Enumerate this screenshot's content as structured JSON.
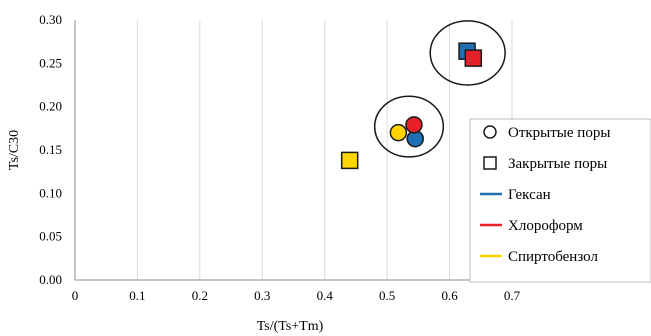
{
  "chart_data": {
    "type": "scatter",
    "title": "",
    "xlabel": "Ts/(Ts+Tm)",
    "ylabel": "Ts/C30",
    "xlim": [
      0,
      0.7
    ],
    "ylim": [
      0,
      0.3
    ],
    "x_ticks": [
      0,
      0.1,
      0.2,
      0.3,
      0.4,
      0.5,
      0.6,
      0.7
    ],
    "x_tick_labels": [
      "0",
      "0.1",
      "0.2",
      "0.3",
      "0.4",
      "0.5",
      "0.6",
      "0.7"
    ],
    "y_ticks": [
      0,
      0.05,
      0.1,
      0.15,
      0.2,
      0.25,
      0.3
    ],
    "y_tick_labels": [
      "0.00",
      "0.05",
      "0.10",
      "0.15",
      "0.20",
      "0.25",
      "0.30"
    ],
    "grid": "vertical",
    "legend_position": "right",
    "colors": {
      "hexane": "#1f6fb4",
      "chloroform": "#e8202a",
      "spirit_benzene": "#ffd400",
      "outline": "#1a1a1a",
      "grid": "#d9d9d9"
    },
    "series": [
      {
        "name": "Гексан",
        "color": "#1f6fb4",
        "points": [
          {
            "x": 0.545,
            "y": 0.163,
            "marker": "circle"
          },
          {
            "x": 0.628,
            "y": 0.264,
            "marker": "square"
          }
        ]
      },
      {
        "name": "Хлороформ",
        "color": "#e8202a",
        "points": [
          {
            "x": 0.543,
            "y": 0.179,
            "marker": "circle"
          },
          {
            "x": 0.638,
            "y": 0.256,
            "marker": "square"
          }
        ]
      },
      {
        "name": "Спиртобензол",
        "color": "#ffd400",
        "points": [
          {
            "x": 0.518,
            "y": 0.17,
            "marker": "circle"
          },
          {
            "x": 0.44,
            "y": 0.138,
            "marker": "square"
          }
        ]
      }
    ],
    "annotations": [
      {
        "shape": "ellipse",
        "cx": 0.535,
        "cy": 0.177,
        "rx": 0.055,
        "ry": 0.035
      },
      {
        "shape": "ellipse",
        "cx": 0.629,
        "cy": 0.262,
        "rx": 0.06,
        "ry": 0.037
      }
    ],
    "legend": [
      {
        "label": "Открытые поры",
        "symbol": "circle"
      },
      {
        "label": "Закрытые поры",
        "symbol": "square"
      },
      {
        "label": "Гексан",
        "symbol": "line",
        "color": "#1f6fb4"
      },
      {
        "label": "Хлороформ",
        "symbol": "line",
        "color": "#e8202a"
      },
      {
        "label": "Спиртобензол",
        "symbol": "line",
        "color": "#ffd400"
      }
    ]
  }
}
